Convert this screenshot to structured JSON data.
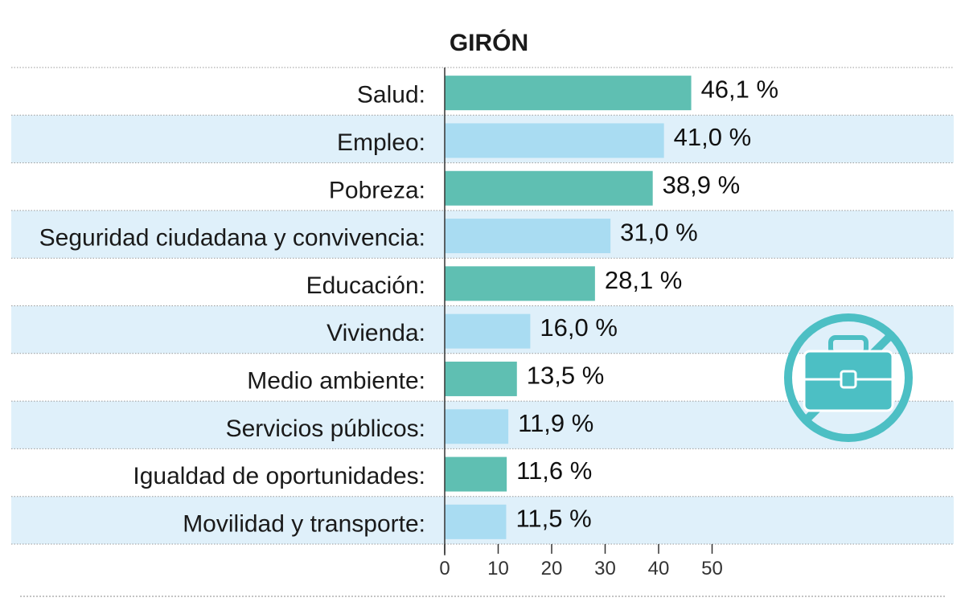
{
  "chart_data": {
    "type": "bar",
    "orientation": "horizontal",
    "title": "GIRÓN",
    "categories": [
      "Salud:",
      "Empleo:",
      "Pobreza:",
      "Seguridad ciudadana y convivencia:",
      "Educación:",
      "Vivienda:",
      "Medio ambiente:",
      "Servicios públicos:",
      "Igualdad de oportunidades:",
      "Movilidad y transporte:"
    ],
    "values": [
      46.1,
      41.0,
      38.9,
      31.0,
      28.1,
      16.0,
      13.5,
      11.9,
      11.6,
      11.5
    ],
    "value_labels": [
      "46,1 %",
      "41,0 %",
      "38,9 %",
      "31,0 %",
      "28,1 %",
      "16,0 %",
      "13,5 %",
      "11,9 %",
      "11,6 %",
      "11,5 %"
    ],
    "xlim": [
      0,
      50
    ],
    "xticks": [
      0,
      10,
      20,
      30,
      40,
      50
    ],
    "xtick_labels": [
      "0",
      "10",
      "20",
      "30",
      "40",
      "50"
    ],
    "grid": false,
    "colors": {
      "bar_odd": "#5fbfb2",
      "bar_even": "#a9dcf2",
      "band_even": "#dff0fa",
      "icon": "#4cbfc4"
    }
  },
  "icon": {
    "name": "no-briefcase-icon"
  }
}
